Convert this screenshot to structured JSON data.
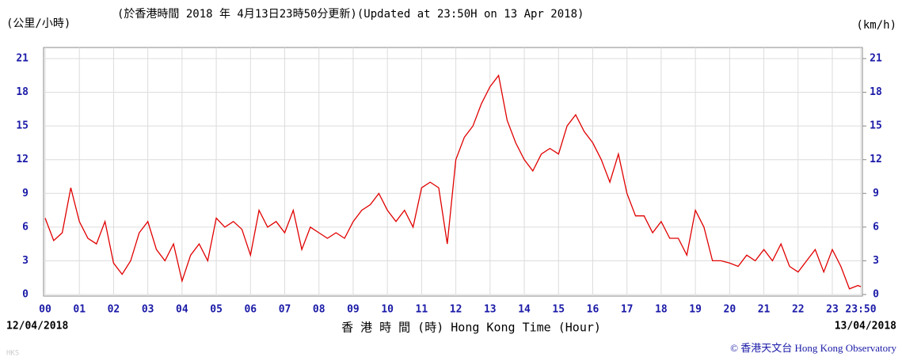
{
  "chart_data": {
    "type": "line",
    "title": "(於香港時間 2018 年 4月13日23時50分更新)(Updated at 23:50H on 13 Apr 2018)",
    "y_label": "(公里/小時)",
    "y2_label": "(km/h)",
    "x_label": "香 港 時 間 (時)  Hong Kong Time (Hour)",
    "start_date": "12/04/2018",
    "end_date": "13/04/2018",
    "credit": "© 香港天文台 Hong Kong Observatory",
    "watermark": "HKS",
    "x": [
      0,
      0.25,
      0.5,
      0.75,
      1,
      1.25,
      1.5,
      1.75,
      2,
      2.25,
      2.5,
      2.75,
      3,
      3.25,
      3.5,
      3.75,
      4,
      4.25,
      4.5,
      4.75,
      5,
      5.25,
      5.5,
      5.75,
      6,
      6.25,
      6.5,
      6.75,
      7,
      7.25,
      7.5,
      7.75,
      8,
      8.25,
      8.5,
      8.75,
      9,
      9.25,
      9.5,
      9.75,
      10,
      10.25,
      10.5,
      10.75,
      11,
      11.25,
      11.5,
      11.75,
      12,
      12.25,
      12.5,
      12.75,
      13,
      13.25,
      13.5,
      13.75,
      14,
      14.25,
      14.5,
      14.75,
      15,
      15.25,
      15.5,
      15.75,
      16,
      16.25,
      16.5,
      16.75,
      17,
      17.25,
      17.5,
      17.75,
      18,
      18.25,
      18.5,
      18.75,
      19,
      19.25,
      19.5,
      19.75,
      20,
      20.25,
      20.5,
      20.75,
      21,
      21.25,
      21.5,
      21.75,
      22,
      22.25,
      22.5,
      22.75,
      23,
      23.25,
      23.5,
      23.75,
      23.8333
    ],
    "series": [
      {
        "name": "Wind speed",
        "color": "#e00000",
        "values": [
          6.8,
          4.8,
          5.5,
          9.5,
          6.5,
          5.0,
          4.5,
          6.5,
          2.8,
          1.8,
          3.0,
          5.5,
          6.5,
          4.0,
          3.0,
          4.5,
          1.2,
          3.5,
          4.5,
          3.0,
          6.8,
          6.0,
          6.5,
          5.8,
          3.5,
          7.5,
          6.0,
          6.5,
          5.5,
          7.5,
          4.0,
          6.0,
          5.5,
          5.0,
          5.5,
          5.0,
          6.5,
          7.5,
          8.0,
          9.0,
          7.5,
          6.5,
          7.5,
          6.0,
          9.5,
          10.0,
          9.5,
          4.5,
          12.0,
          14.0,
          15.0,
          17.0,
          18.5,
          19.5,
          15.5,
          13.5,
          12.0,
          11.0,
          12.5,
          13.0,
          12.5,
          15.0,
          16.0,
          14.5,
          13.5,
          12.0,
          10.0,
          12.5,
          9.0,
          7.0,
          7.0,
          5.5,
          6.5,
          5.0,
          5.0,
          3.5,
          7.5,
          6.0,
          3.0,
          3.0,
          2.8,
          2.5,
          3.5,
          3.0,
          4.0,
          3.0,
          4.5,
          2.5,
          2.0,
          3.0,
          4.0,
          2.0,
          4.0,
          2.5,
          0.5,
          0.8,
          0.7
        ]
      }
    ],
    "xlim": [
      0,
      23.8333
    ],
    "xticks": [
      {
        "value": 0,
        "label": "00"
      },
      {
        "value": 1,
        "label": "01"
      },
      {
        "value": 2,
        "label": "02"
      },
      {
        "value": 3,
        "label": "03"
      },
      {
        "value": 4,
        "label": "04"
      },
      {
        "value": 5,
        "label": "05"
      },
      {
        "value": 6,
        "label": "06"
      },
      {
        "value": 7,
        "label": "07"
      },
      {
        "value": 8,
        "label": "08"
      },
      {
        "value": 9,
        "label": "09"
      },
      {
        "value": 10,
        "label": "10"
      },
      {
        "value": 11,
        "label": "11"
      },
      {
        "value": 12,
        "label": "12"
      },
      {
        "value": 13,
        "label": "13"
      },
      {
        "value": 14,
        "label": "14"
      },
      {
        "value": 15,
        "label": "15"
      },
      {
        "value": 16,
        "label": "16"
      },
      {
        "value": 17,
        "label": "17"
      },
      {
        "value": 18,
        "label": "18"
      },
      {
        "value": 19,
        "label": "19"
      },
      {
        "value": 20,
        "label": "20"
      },
      {
        "value": 21,
        "label": "21"
      },
      {
        "value": 22,
        "label": "22"
      },
      {
        "value": 23,
        "label": "23"
      },
      {
        "value": 23.8333,
        "label": "23:50"
      }
    ],
    "ylim": [
      0,
      21
    ],
    "yticks": [
      0,
      3,
      6,
      9,
      12,
      15,
      18,
      21
    ],
    "y2lim": [
      0,
      21
    ],
    "y2ticks": [
      0,
      3,
      6,
      9,
      12,
      15,
      18,
      21
    ],
    "grid": true
  }
}
